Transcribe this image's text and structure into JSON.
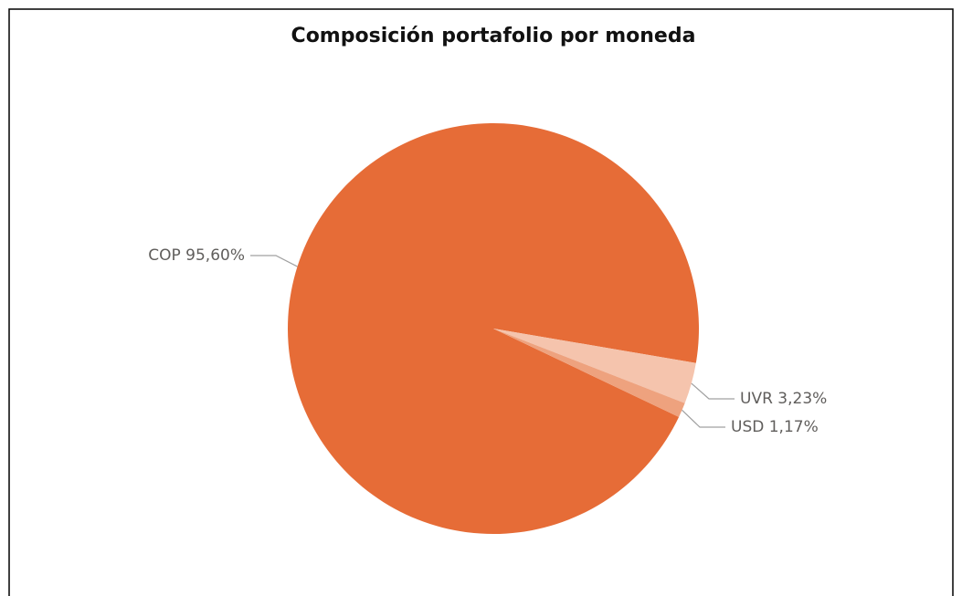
{
  "chart_data": {
    "type": "pie",
    "title": "Composición portafolio por moneda",
    "categories": [
      "COP",
      "UVR",
      "USD"
    ],
    "values": [
      95.6,
      3.23,
      1.17
    ],
    "value_labels": [
      "95,60%",
      "3,23%",
      "1,17%"
    ],
    "colors": [
      "#e66c37",
      "#f5c4ad",
      "#eea27e"
    ]
  }
}
